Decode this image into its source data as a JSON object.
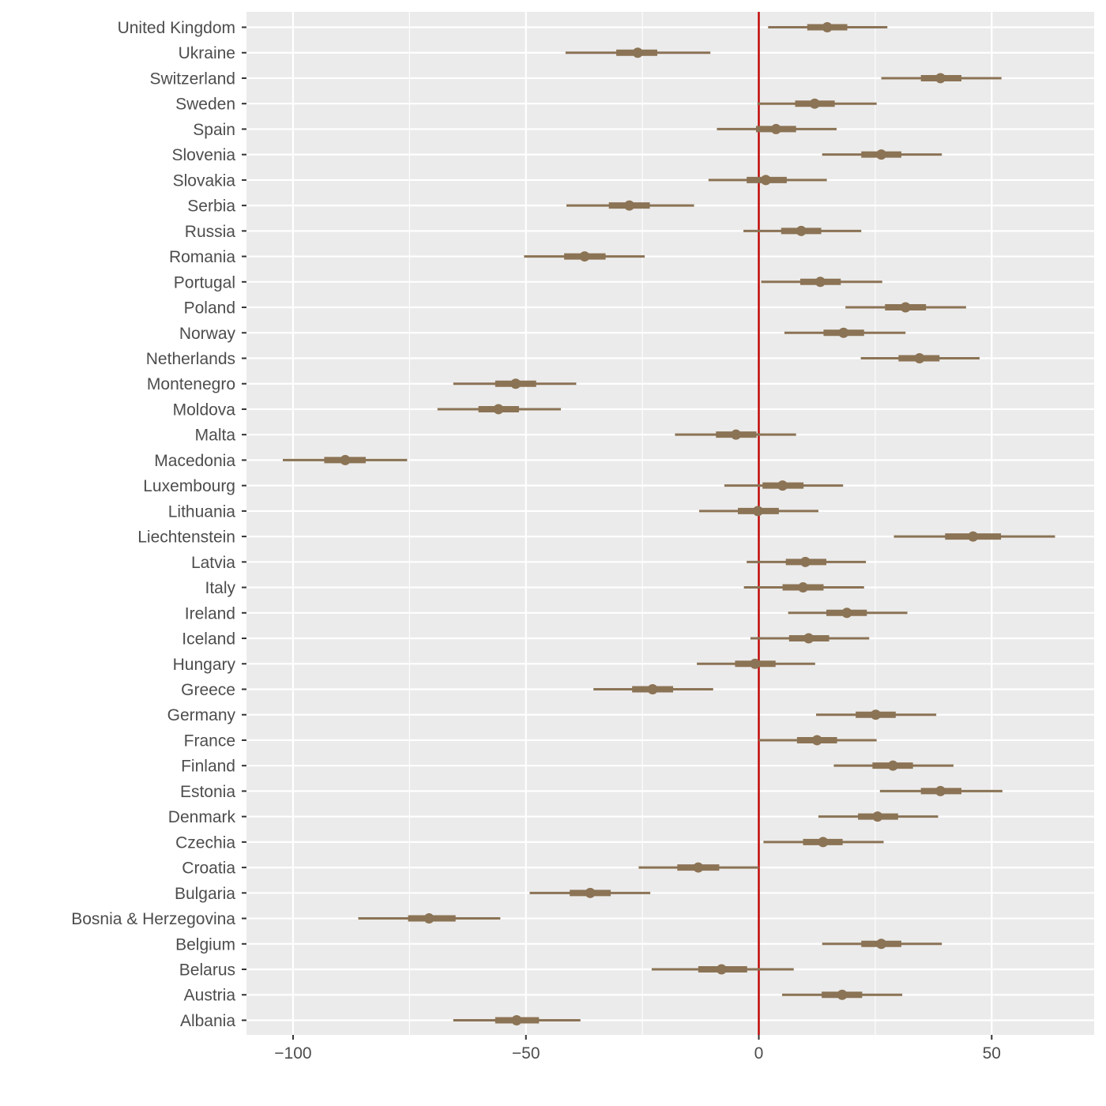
{
  "chart_data": {
    "type": "interval",
    "title": "",
    "xlabel": "",
    "ylabel": "",
    "xlim": [
      -110,
      72
    ],
    "x_ticks": [
      -100,
      -50,
      0,
      50
    ],
    "x_tick_labels": [
      "−100",
      "−50",
      "0",
      "50"
    ],
    "reference_line": 0,
    "colors": {
      "interval": "#8b7355",
      "reference": "#c00000",
      "panel": "#ebebeb",
      "grid": "#ffffff",
      "axis_text": "#4d4d4d"
    },
    "series": [
      {
        "country": "United Kingdom",
        "estimate": 14.7,
        "inner": [
          10.4,
          19.0
        ],
        "outer": [
          2.0,
          27.6
        ]
      },
      {
        "country": "Ukraine",
        "estimate": -26.0,
        "inner": [
          -30.6,
          -21.8
        ],
        "outer": [
          -41.5,
          -10.4
        ]
      },
      {
        "country": "Switzerland",
        "estimate": 39.0,
        "inner": [
          34.8,
          43.5
        ],
        "outer": [
          26.3,
          52.1
        ]
      },
      {
        "country": "Sweden",
        "estimate": 12.0,
        "inner": [
          7.8,
          16.3
        ],
        "outer": [
          -0.3,
          25.3
        ]
      },
      {
        "country": "Spain",
        "estimate": 3.7,
        "inner": [
          -0.6,
          8.0
        ],
        "outer": [
          -9.0,
          16.7
        ]
      },
      {
        "country": "Slovenia",
        "estimate": 26.3,
        "inner": [
          22.0,
          30.6
        ],
        "outer": [
          13.6,
          39.3
        ]
      },
      {
        "country": "Slovakia",
        "estimate": 1.5,
        "inner": [
          -2.6,
          6.0
        ],
        "outer": [
          -10.8,
          14.6
        ]
      },
      {
        "country": "Serbia",
        "estimate": -27.8,
        "inner": [
          -32.2,
          -23.4
        ],
        "outer": [
          -41.3,
          -13.9
        ]
      },
      {
        "country": "Russia",
        "estimate": 9.1,
        "inner": [
          4.8,
          13.4
        ],
        "outer": [
          -3.3,
          22.0
        ]
      },
      {
        "country": "Romania",
        "estimate": -37.4,
        "inner": [
          -41.8,
          -32.9
        ],
        "outer": [
          -50.4,
          -24.5
        ]
      },
      {
        "country": "Portugal",
        "estimate": 13.2,
        "inner": [
          8.9,
          17.6
        ],
        "outer": [
          0.5,
          26.5
        ]
      },
      {
        "country": "Poland",
        "estimate": 31.5,
        "inner": [
          27.1,
          35.9
        ],
        "outer": [
          18.6,
          44.5
        ]
      },
      {
        "country": "Norway",
        "estimate": 18.2,
        "inner": [
          13.9,
          22.6
        ],
        "outer": [
          5.5,
          31.5
        ]
      },
      {
        "country": "Netherlands",
        "estimate": 34.5,
        "inner": [
          30.0,
          38.8
        ],
        "outer": [
          21.9,
          47.4
        ]
      },
      {
        "country": "Montenegro",
        "estimate": -52.2,
        "inner": [
          -56.6,
          -47.8
        ],
        "outer": [
          -65.6,
          -39.2
        ]
      },
      {
        "country": "Moldova",
        "estimate": -55.9,
        "inner": [
          -60.2,
          -51.5
        ],
        "outer": [
          -69.0,
          -42.5
        ]
      },
      {
        "country": "Malta",
        "estimate": -4.9,
        "inner": [
          -9.2,
          -0.5
        ],
        "outer": [
          -18.0,
          8.0
        ]
      },
      {
        "country": "Macedonia",
        "estimate": -88.8,
        "inner": [
          -93.3,
          -84.4
        ],
        "outer": [
          -102.2,
          -75.5
        ]
      },
      {
        "country": "Luxembourg",
        "estimate": 5.1,
        "inner": [
          0.8,
          9.6
        ],
        "outer": [
          -7.4,
          18.1
        ]
      },
      {
        "country": "Lithuania",
        "estimate": -0.2,
        "inner": [
          -4.5,
          4.3
        ],
        "outer": [
          -12.8,
          12.8
        ]
      },
      {
        "country": "Liechtenstein",
        "estimate": 46.0,
        "inner": [
          40.0,
          52.0
        ],
        "outer": [
          29.0,
          63.6
        ]
      },
      {
        "country": "Latvia",
        "estimate": 10.0,
        "inner": [
          5.8,
          14.5
        ],
        "outer": [
          -2.6,
          23.0
        ]
      },
      {
        "country": "Italy",
        "estimate": 9.5,
        "inner": [
          5.1,
          13.9
        ],
        "outer": [
          -3.2,
          22.6
        ]
      },
      {
        "country": "Ireland",
        "estimate": 18.9,
        "inner": [
          14.5,
          23.2
        ],
        "outer": [
          6.3,
          31.9
        ]
      },
      {
        "country": "Iceland",
        "estimate": 10.7,
        "inner": [
          6.5,
          15.1
        ],
        "outer": [
          -1.8,
          23.7
        ]
      },
      {
        "country": "Hungary",
        "estimate": -0.8,
        "inner": [
          -5.1,
          3.6
        ],
        "outer": [
          -13.3,
          12.1
        ]
      },
      {
        "country": "Greece",
        "estimate": -22.8,
        "inner": [
          -27.2,
          -18.4
        ],
        "outer": [
          -35.5,
          -9.8
        ]
      },
      {
        "country": "Germany",
        "estimate": 25.1,
        "inner": [
          20.8,
          29.4
        ],
        "outer": [
          12.3,
          38.1
        ]
      },
      {
        "country": "France",
        "estimate": 12.5,
        "inner": [
          8.2,
          16.8
        ],
        "outer": [
          0.0,
          25.3
        ]
      },
      {
        "country": "Finland",
        "estimate": 28.8,
        "inner": [
          24.4,
          33.1
        ],
        "outer": [
          16.1,
          41.8
        ]
      },
      {
        "country": "Estonia",
        "estimate": 39.0,
        "inner": [
          34.8,
          43.5
        ],
        "outer": [
          26.0,
          52.3
        ]
      },
      {
        "country": "Denmark",
        "estimate": 25.5,
        "inner": [
          21.3,
          29.9
        ],
        "outer": [
          12.8,
          38.5
        ]
      },
      {
        "country": "Czechia",
        "estimate": 13.8,
        "inner": [
          9.5,
          18.0
        ],
        "outer": [
          1.0,
          26.8
        ]
      },
      {
        "country": "Croatia",
        "estimate": -13.0,
        "inner": [
          -17.5,
          -8.5
        ],
        "outer": [
          -25.8,
          0.0
        ]
      },
      {
        "country": "Bulgaria",
        "estimate": -36.2,
        "inner": [
          -40.6,
          -31.8
        ],
        "outer": [
          -49.2,
          -23.3
        ]
      },
      {
        "country": "Bosnia & Herzegovina",
        "estimate": -70.8,
        "inner": [
          -75.3,
          -65.1
        ],
        "outer": [
          -86.0,
          -55.5
        ]
      },
      {
        "country": "Belgium",
        "estimate": 26.3,
        "inner": [
          22.0,
          30.6
        ],
        "outer": [
          13.6,
          39.3
        ]
      },
      {
        "country": "Belarus",
        "estimate": -8.0,
        "inner": [
          -13.0,
          -2.5
        ],
        "outer": [
          -23.0,
          7.5
        ]
      },
      {
        "country": "Austria",
        "estimate": 17.9,
        "inner": [
          13.5,
          22.2
        ],
        "outer": [
          5.0,
          30.8
        ]
      },
      {
        "country": "Albania",
        "estimate": -52.0,
        "inner": [
          -56.6,
          -47.2
        ],
        "outer": [
          -65.6,
          -38.3
        ]
      }
    ]
  }
}
